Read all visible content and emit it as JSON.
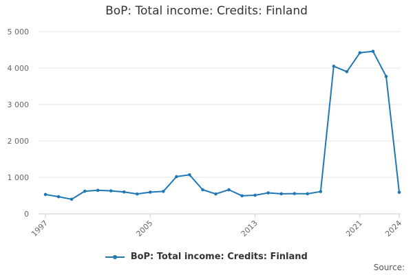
{
  "chart_data": {
    "type": "line",
    "title": "BoP: Total income: Credits: Finland",
    "xlabel": "",
    "ylabel": "",
    "ylim": [
      0,
      5000
    ],
    "yticks": [
      0,
      1000,
      2000,
      3000,
      4000,
      5000
    ],
    "ytick_labels": [
      "0",
      "1 000",
      "2 000",
      "3 000",
      "4 000",
      "5 000"
    ],
    "xlim": [
      1997,
      2024
    ],
    "xticks": [
      1997,
      2005,
      2013,
      2021,
      2024
    ],
    "xtick_labels": [
      "1997",
      "2005",
      "2013",
      "2021",
      "2024"
    ],
    "grid": true,
    "legend_position": "bottom",
    "series": [
      {
        "name": "BoP: Total income: Credits: Finland",
        "color": "#1f77b4",
        "x": [
          1997,
          1998,
          1999,
          2000,
          2001,
          2002,
          2003,
          2004,
          2005,
          2006,
          2007,
          2008,
          2009,
          2010,
          2011,
          2012,
          2013,
          2014,
          2015,
          2016,
          2017,
          2018,
          2019,
          2020,
          2021,
          2022,
          2023,
          2024
        ],
        "values": [
          530,
          470,
          400,
          620,
          645,
          630,
          600,
          545,
          595,
          615,
          1020,
          1070,
          660,
          545,
          660,
          495,
          510,
          575,
          550,
          555,
          550,
          610,
          4050,
          3900,
          4420,
          4460,
          3770,
          590
        ]
      }
    ]
  },
  "source_label": "Source:"
}
